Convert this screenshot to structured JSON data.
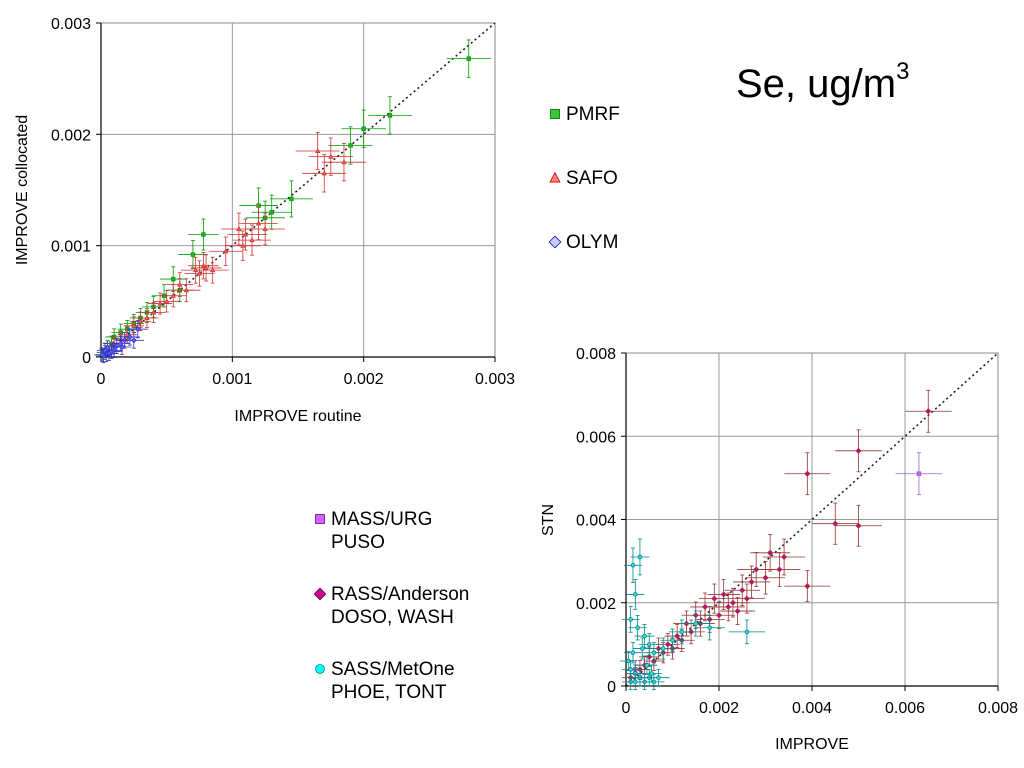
{
  "title": {
    "main": "Se, ug/m",
    "sup": "3"
  },
  "legend_top": [
    {
      "label": "PMRF",
      "marker": "square",
      "fill": "#33cc33",
      "stroke": "#006600"
    },
    {
      "label": "SAFO",
      "marker": "triangle",
      "fill": "#ff8080",
      "stroke": "#cc0000"
    },
    {
      "label": "OLYM",
      "marker": "diamond",
      "fill": "#ccccff",
      "stroke": "#0000cc"
    }
  ],
  "legend_bottom": [
    {
      "line1": "MASS/URG",
      "line2": "PUSO",
      "marker": "square",
      "fill": "#cc66ff",
      "stroke": "#660099"
    },
    {
      "line1": "RASS/Anderson",
      "line2": "DOSO, WASH",
      "marker": "diamond",
      "fill": "#cc0099",
      "stroke": "#660033"
    },
    {
      "line1": "SASS/MetOne",
      "line2": "PHOE, TONT",
      "marker": "circle",
      "fill": "#00ffff",
      "stroke": "#008888"
    }
  ],
  "chart_data": [
    {
      "type": "scatter",
      "title": "",
      "xlabel": "IMPROVE routine",
      "ylabel": "IMPROVE collocated",
      "xlim": [
        0,
        0.003
      ],
      "ylim": [
        0,
        0.003
      ],
      "xticks": [
        "0",
        "0.001",
        "0.002",
        "0.003"
      ],
      "yticks": [
        "0",
        "0.001",
        "0.002",
        "0.003"
      ],
      "grid": true,
      "one_to_one_line": true,
      "series": [
        {
          "name": "PMRF",
          "color": "#33aa33",
          "err_color": "#009900",
          "marker": "square",
          "points": [
            [
              0.0028,
              0.00268
            ],
            [
              0.0022,
              0.00217
            ],
            [
              0.002,
              0.00205
            ],
            [
              0.0019,
              0.0019
            ],
            [
              0.00145,
              0.00142
            ],
            [
              0.0013,
              0.0013
            ],
            [
              0.0012,
              0.00136
            ],
            [
              0.00125,
              0.00125
            ],
            [
              0.00078,
              0.0011
            ],
            [
              0.0007,
              0.00092
            ],
            [
              0.00055,
              0.0007
            ],
            [
              0.0006,
              0.0006
            ],
            [
              0.00048,
              0.00055
            ],
            [
              0.0004,
              0.00045
            ],
            [
              0.00035,
              0.0004
            ],
            [
              0.0003,
              0.00035
            ],
            [
              0.00025,
              0.0003
            ],
            [
              0.0002,
              0.00025
            ],
            [
              0.00015,
              0.00022
            ],
            [
              0.0001,
              0.00018
            ],
            [
              8e-05,
              0.00012
            ],
            [
              5e-05,
              8e-05
            ],
            [
              3e-05,
              4e-05
            ]
          ]
        },
        {
          "name": "SAFO",
          "color": "#ff6666",
          "err_color": "#cc3333",
          "marker": "triangle",
          "points": [
            [
              0.00185,
              0.00175
            ],
            [
              0.00175,
              0.0018
            ],
            [
              0.0017,
              0.00165
            ],
            [
              0.00165,
              0.00185
            ],
            [
              0.00125,
              0.00115
            ],
            [
              0.0012,
              0.0012
            ],
            [
              0.00115,
              0.00105
            ],
            [
              0.0011,
              0.0011
            ],
            [
              0.00105,
              0.00115
            ],
            [
              0.00108,
              0.001
            ],
            [
              0.00095,
              0.00095
            ],
            [
              0.00085,
              0.00078
            ],
            [
              0.0008,
              0.0008
            ],
            [
              0.00078,
              0.00082
            ],
            [
              0.00075,
              0.00075
            ],
            [
              0.00072,
              0.00078
            ],
            [
              0.00065,
              0.0006
            ],
            [
              0.0006,
              0.00065
            ],
            [
              0.00055,
              0.00055
            ],
            [
              0.0005,
              0.0005
            ],
            [
              0.00045,
              0.00048
            ],
            [
              0.0004,
              0.0004
            ],
            [
              0.00035,
              0.00035
            ],
            [
              0.0003,
              0.00032
            ],
            [
              0.00025,
              0.00028
            ],
            [
              0.0002,
              0.0002
            ],
            [
              0.00015,
              0.00016
            ],
            [
              0.0001,
              0.00012
            ]
          ]
        },
        {
          "name": "OLYM",
          "color": "#6666ff",
          "err_color": "#3333cc",
          "marker": "diamond",
          "points": [
            [
              0.00028,
              0.00025
            ],
            [
              0.00022,
              0.00018
            ],
            [
              0.00018,
              0.00015
            ],
            [
              0.00015,
              0.00012
            ],
            [
              0.00012,
              0.0001
            ],
            [
              0.0001,
              6e-05
            ],
            [
              8e-05,
              5e-05
            ],
            [
              6e-05,
              3e-05
            ],
            [
              4e-05,
              2e-05
            ],
            [
              3e-05,
              6e-05
            ],
            [
              2e-05,
              1e-05
            ],
            [
              1e-05,
              2e-05
            ],
            [
              5e-05,
              8e-05
            ],
            [
              0.00016,
              9e-05
            ],
            [
              0.00025,
              0.00015
            ]
          ]
        }
      ]
    },
    {
      "type": "scatter",
      "title": "",
      "xlabel": "IMPROVE",
      "ylabel": "STN",
      "xlim": [
        0,
        0.008
      ],
      "ylim": [
        0,
        0.008
      ],
      "xticks": [
        "0",
        "0.002",
        "0.004",
        "0.006",
        "0.008"
      ],
      "yticks": [
        "0",
        "0.002",
        "0.004",
        "0.006",
        "0.008"
      ],
      "grid": true,
      "one_to_one_line": true,
      "series": [
        {
          "name": "MASS/URG PUSO",
          "color": "#cc66ff",
          "err_color": "#9966cc",
          "marker": "square",
          "points": [
            [
              0.0063,
              0.0051
            ],
            [
              0.0002,
              0.0004
            ],
            [
              0.0003,
              0.0002
            ]
          ]
        },
        {
          "name": "RASS/Anderson DOSO, WASH",
          "color": "#cc0099",
          "err_color": "#993333",
          "marker": "diamond",
          "points": [
            [
              0.0065,
              0.0066
            ],
            [
              0.005,
              0.00565
            ],
            [
              0.0039,
              0.0051
            ],
            [
              0.0045,
              0.0039
            ],
            [
              0.005,
              0.00385
            ],
            [
              0.0039,
              0.0024
            ],
            [
              0.0034,
              0.0031
            ],
            [
              0.0033,
              0.0028
            ],
            [
              0.0031,
              0.0032
            ],
            [
              0.003,
              0.0026
            ],
            [
              0.0028,
              0.0028
            ],
            [
              0.0027,
              0.0025
            ],
            [
              0.0026,
              0.0021
            ],
            [
              0.0025,
              0.0023
            ],
            [
              0.0024,
              0.0018
            ],
            [
              0.0023,
              0.002
            ],
            [
              0.0022,
              0.0019
            ],
            [
              0.0021,
              0.0022
            ],
            [
              0.002,
              0.0017
            ],
            [
              0.0019,
              0.0021
            ],
            [
              0.0018,
              0.0016
            ],
            [
              0.0017,
              0.0019
            ],
            [
              0.0016,
              0.0015
            ],
            [
              0.0015,
              0.0017
            ],
            [
              0.0014,
              0.0013
            ],
            [
              0.0013,
              0.0015
            ],
            [
              0.0012,
              0.0011
            ],
            [
              0.0011,
              0.0012
            ],
            [
              0.001,
              0.0009
            ],
            [
              0.0009,
              0.001
            ],
            [
              0.0008,
              0.0008
            ],
            [
              0.0007,
              0.0009
            ],
            [
              0.0006,
              0.0006
            ],
            [
              0.0005,
              0.0007
            ],
            [
              0.0004,
              0.0005
            ],
            [
              0.0003,
              0.0004
            ],
            [
              0.0002,
              0.0003
            ],
            [
              0.0001,
              0.0002
            ]
          ]
        },
        {
          "name": "SASS/MetOne PHOE, TONT",
          "color": "#33dddd",
          "err_color": "#008888",
          "marker": "circle",
          "points": [
            [
              0.00015,
              0.0029
            ],
            [
              0.0003,
              0.0031
            ],
            [
              0.0002,
              0.0022
            ],
            [
              0.0001,
              0.0016
            ],
            [
              0.00025,
              0.0014
            ],
            [
              0.0004,
              0.0012
            ],
            [
              0.0005,
              0.001
            ],
            [
              0.0006,
              0.0008
            ],
            [
              0.0008,
              0.0009
            ],
            [
              0.001,
              0.0011
            ],
            [
              0.0012,
              0.0013
            ],
            [
              0.0015,
              0.0015
            ],
            [
              0.0018,
              0.0014
            ],
            [
              0.0026,
              0.0013
            ],
            [
              5e-05,
              0.0006
            ],
            [
              0.0001,
              0.0004
            ],
            [
              0.0002,
              0.0003
            ],
            [
              0.0003,
              0.0002
            ],
            [
              0.0004,
              0.0001
            ],
            [
              0.0005,
              0.0002
            ],
            [
              0.0006,
              0.0001
            ],
            [
              0.00015,
              0.0008
            ],
            [
              0.00035,
              0.0009
            ],
            [
              0.00045,
              0.0005
            ],
            [
              0.00055,
              0.0003
            ],
            [
              0.0007,
              0.0002
            ],
            [
              0.0001,
              0.0001
            ],
            [
              0.0002,
              0.0001
            ]
          ]
        }
      ]
    }
  ]
}
